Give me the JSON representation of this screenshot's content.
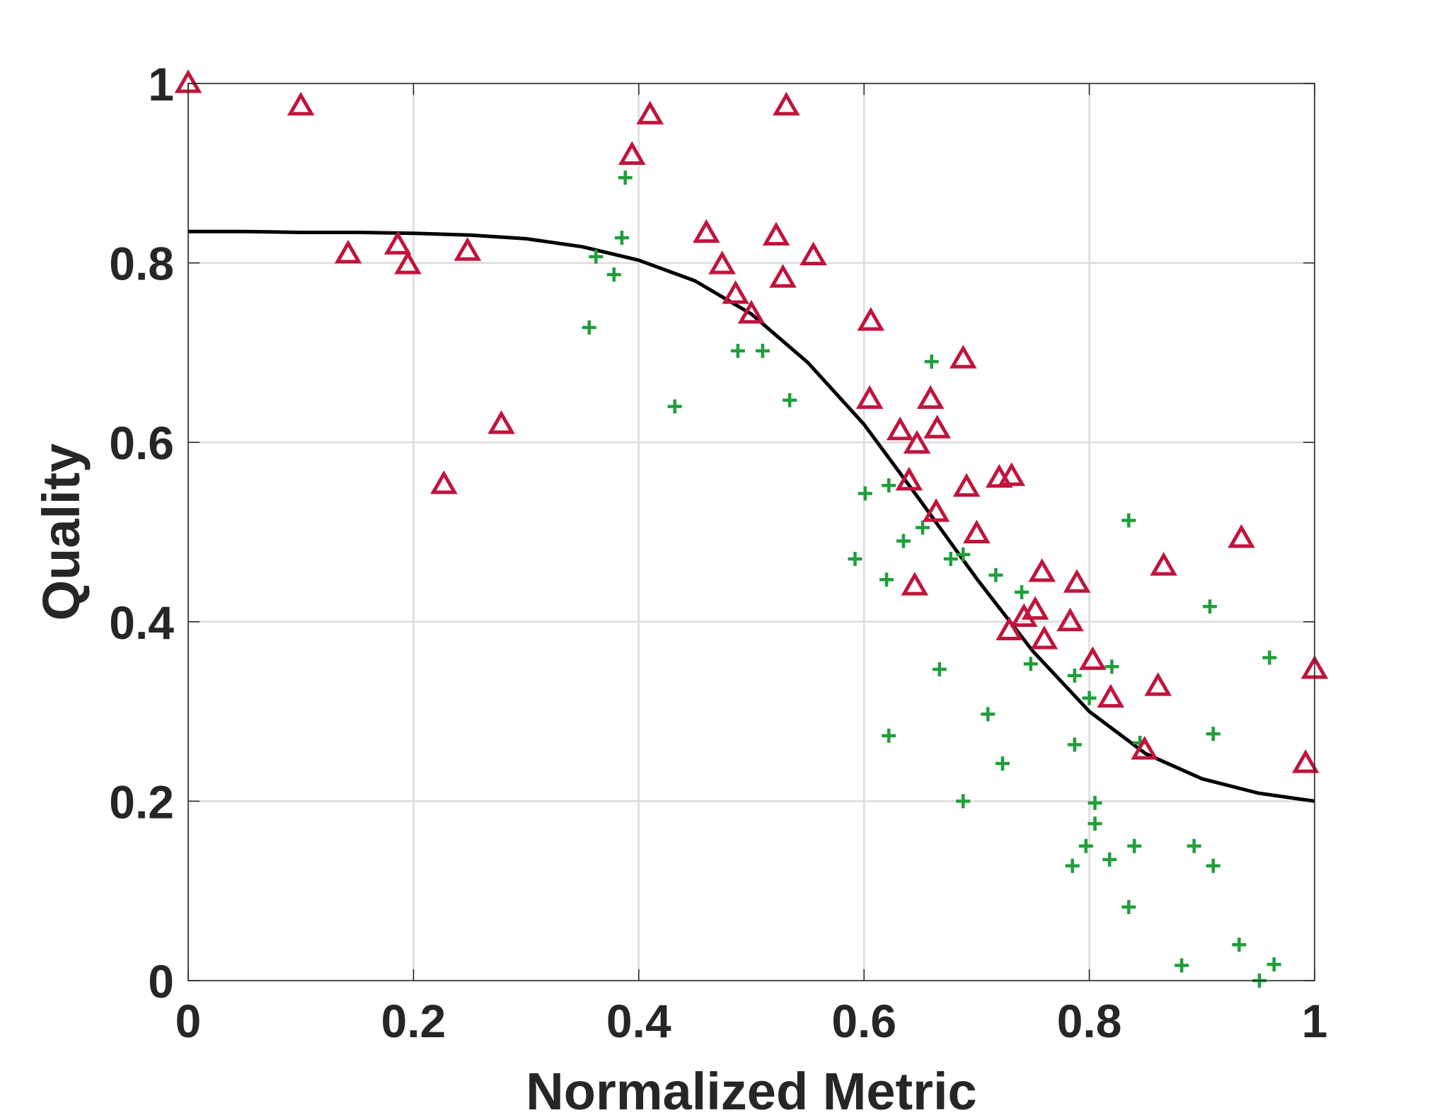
{
  "chart_data": {
    "type": "scatter",
    "title": "",
    "xlabel": "Normalized Metric",
    "ylabel": "Quality",
    "xlim": [
      0,
      1
    ],
    "ylim": [
      0,
      1
    ],
    "xticks": [
      0,
      0.2,
      0.4,
      0.6,
      0.8,
      1
    ],
    "xtick_labels": [
      "0",
      "0.2",
      "0.4",
      "0.6",
      "0.8",
      "1"
    ],
    "yticks": [
      0,
      0.2,
      0.4,
      0.6,
      0.8,
      1
    ],
    "ytick_labels": [
      "0",
      "0.2",
      "0.4",
      "0.6",
      "0.8",
      "1"
    ],
    "grid": true,
    "legend": "none",
    "colors": {
      "triangles": "#c0143c",
      "plus": "#1f9e3a",
      "curve": "#000000",
      "grid": "#dcdcdc",
      "axes": "#262626"
    },
    "series": [
      {
        "name": "triangles",
        "marker": "triangle",
        "points": [
          [
            0.0,
            1.0
          ],
          [
            0.1,
            0.975
          ],
          [
            0.142,
            0.81
          ],
          [
            0.186,
            0.82
          ],
          [
            0.195,
            0.798
          ],
          [
            0.248,
            0.813
          ],
          [
            0.227,
            0.553
          ],
          [
            0.278,
            0.62
          ],
          [
            0.394,
            0.92
          ],
          [
            0.41,
            0.965
          ],
          [
            0.46,
            0.833
          ],
          [
            0.474,
            0.798
          ],
          [
            0.486,
            0.765
          ],
          [
            0.5,
            0.743
          ],
          [
            0.522,
            0.83
          ],
          [
            0.528,
            0.783
          ],
          [
            0.531,
            0.975
          ],
          [
            0.555,
            0.808
          ],
          [
            0.606,
            0.735
          ],
          [
            0.605,
            0.648
          ],
          [
            0.632,
            0.613
          ],
          [
            0.647,
            0.598
          ],
          [
            0.64,
            0.557
          ],
          [
            0.659,
            0.648
          ],
          [
            0.665,
            0.615
          ],
          [
            0.664,
            0.522
          ],
          [
            0.645,
            0.44
          ],
          [
            0.688,
            0.693
          ],
          [
            0.691,
            0.55
          ],
          [
            0.7,
            0.498
          ],
          [
            0.72,
            0.56
          ],
          [
            0.731,
            0.562
          ],
          [
            0.729,
            0.39
          ],
          [
            0.742,
            0.405
          ],
          [
            0.752,
            0.413
          ],
          [
            0.758,
            0.455
          ],
          [
            0.76,
            0.38
          ],
          [
            0.783,
            0.4
          ],
          [
            0.789,
            0.443
          ],
          [
            0.803,
            0.357
          ],
          [
            0.819,
            0.315
          ],
          [
            0.849,
            0.257
          ],
          [
            0.861,
            0.328
          ],
          [
            0.866,
            0.462
          ],
          [
            0.935,
            0.493
          ],
          [
            0.992,
            0.242
          ],
          [
            1.0,
            0.347
          ]
        ]
      },
      {
        "name": "plus",
        "marker": "plus",
        "points": [
          [
            0.356,
            0.728
          ],
          [
            0.362,
            0.807
          ],
          [
            0.378,
            0.787
          ],
          [
            0.385,
            0.828
          ],
          [
            0.388,
            0.895
          ],
          [
            0.432,
            0.64
          ],
          [
            0.488,
            0.702
          ],
          [
            0.51,
            0.702
          ],
          [
            0.534,
            0.647
          ],
          [
            0.592,
            0.47
          ],
          [
            0.601,
            0.543
          ],
          [
            0.62,
            0.447
          ],
          [
            0.622,
            0.552
          ],
          [
            0.622,
            0.273
          ],
          [
            0.635,
            0.49
          ],
          [
            0.652,
            0.505
          ],
          [
            0.66,
            0.69
          ],
          [
            0.667,
            0.347
          ],
          [
            0.677,
            0.47
          ],
          [
            0.688,
            0.475
          ],
          [
            0.688,
            0.2
          ],
          [
            0.71,
            0.297
          ],
          [
            0.717,
            0.452
          ],
          [
            0.723,
            0.242
          ],
          [
            0.74,
            0.433
          ],
          [
            0.748,
            0.353
          ],
          [
            0.787,
            0.34
          ],
          [
            0.787,
            0.263
          ],
          [
            0.785,
            0.128
          ],
          [
            0.797,
            0.15
          ],
          [
            0.8,
            0.315
          ],
          [
            0.805,
            0.198
          ],
          [
            0.805,
            0.175
          ],
          [
            0.818,
            0.135
          ],
          [
            0.82,
            0.35
          ],
          [
            0.835,
            0.513
          ],
          [
            0.835,
            0.082
          ],
          [
            0.84,
            0.15
          ],
          [
            0.845,
            0.265
          ],
          [
            0.882,
            0.017
          ],
          [
            0.893,
            0.15
          ],
          [
            0.907,
            0.417
          ],
          [
            0.91,
            0.275
          ],
          [
            0.91,
            0.128
          ],
          [
            0.933,
            0.04
          ],
          [
            0.951,
            0.0
          ],
          [
            0.96,
            0.36
          ],
          [
            0.964,
            0.018
          ]
        ]
      },
      {
        "name": "fit",
        "marker": "line",
        "points": [
          [
            0.0,
            0.835
          ],
          [
            0.05,
            0.835
          ],
          [
            0.1,
            0.834
          ],
          [
            0.15,
            0.834
          ],
          [
            0.2,
            0.833
          ],
          [
            0.25,
            0.831
          ],
          [
            0.3,
            0.827
          ],
          [
            0.35,
            0.818
          ],
          [
            0.4,
            0.803
          ],
          [
            0.45,
            0.78
          ],
          [
            0.5,
            0.743
          ],
          [
            0.55,
            0.689
          ],
          [
            0.6,
            0.62
          ],
          [
            0.65,
            0.535
          ],
          [
            0.7,
            0.448
          ],
          [
            0.75,
            0.367
          ],
          [
            0.8,
            0.3
          ],
          [
            0.85,
            0.253
          ],
          [
            0.9,
            0.225
          ],
          [
            0.95,
            0.209
          ],
          [
            1.0,
            0.2
          ]
        ]
      }
    ]
  }
}
